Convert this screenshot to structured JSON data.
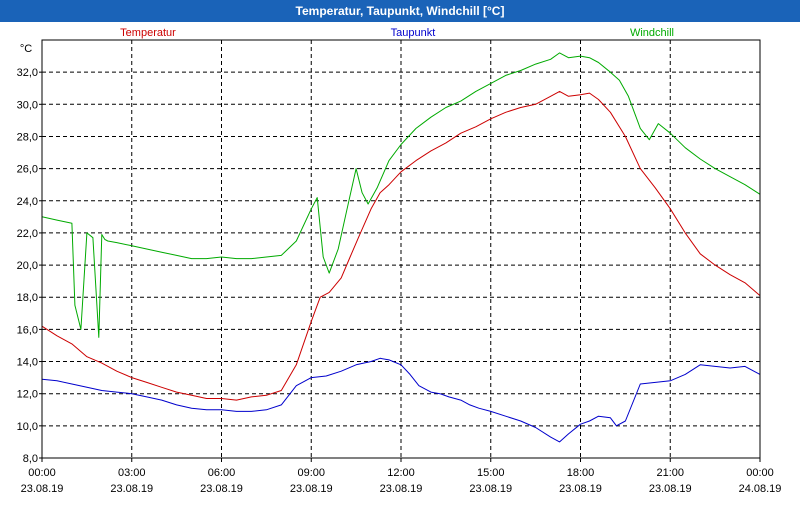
{
  "chart_data": {
    "type": "line",
    "title": "Temperatur, Taupunkt, Windchill [°C]",
    "ylabel": "°C",
    "ylim": [
      8,
      34
    ],
    "yticks": [
      8,
      10,
      12,
      14,
      16,
      18,
      20,
      22,
      24,
      26,
      28,
      30,
      32
    ],
    "ytick_labels": [
      "8,0",
      "10,0",
      "12,0",
      "14,0",
      "16,0",
      "18,0",
      "20,0",
      "22,0",
      "24,0",
      "26,0",
      "28,0",
      "30,0",
      "32,0"
    ],
    "xlim": [
      0,
      24
    ],
    "xticks": [
      {
        "h": 0,
        "time": "00:00",
        "date": "23.08.19"
      },
      {
        "h": 3,
        "time": "03:00",
        "date": "23.08.19"
      },
      {
        "h": 6,
        "time": "06:00",
        "date": "23.08.19"
      },
      {
        "h": 9,
        "time": "09:00",
        "date": "23.08.19"
      },
      {
        "h": 12,
        "time": "12:00",
        "date": "23.08.19"
      },
      {
        "h": 15,
        "time": "15:00",
        "date": "23.08.19"
      },
      {
        "h": 18,
        "time": "18:00",
        "date": "23.08.19"
      },
      {
        "h": 21,
        "time": "21:00",
        "date": "23.08.19"
      },
      {
        "h": 24,
        "time": "00:00",
        "date": "24.08.19"
      }
    ],
    "grid": true,
    "series": [
      {
        "name": "Temperatur",
        "color": "#cc0000",
        "x": [
          0,
          0.5,
          1,
          1.5,
          2,
          2.5,
          3,
          3.5,
          4,
          4.5,
          5,
          5.5,
          6,
          6.5,
          7,
          7.5,
          8,
          8.5,
          9,
          9.3,
          9.6,
          10,
          10.3,
          10.6,
          11,
          11.3,
          11.6,
          12,
          12.5,
          13,
          13.5,
          14,
          14.5,
          15,
          15.5,
          16,
          16.5,
          17,
          17.3,
          17.6,
          18,
          18.3,
          18.6,
          19,
          19.5,
          20,
          20.5,
          21,
          21.5,
          22,
          22.5,
          23,
          23.5,
          24
        ],
        "values": [
          16.2,
          15.6,
          15.1,
          14.3,
          13.9,
          13.4,
          13.0,
          12.7,
          12.4,
          12.1,
          11.9,
          11.7,
          11.7,
          11.6,
          11.8,
          11.9,
          12.2,
          13.8,
          16.5,
          18.0,
          18.3,
          19.2,
          20.5,
          21.8,
          23.5,
          24.5,
          25.0,
          25.8,
          26.5,
          27.1,
          27.6,
          28.2,
          28.6,
          29.1,
          29.5,
          29.8,
          30.0,
          30.5,
          30.8,
          30.5,
          30.6,
          30.7,
          30.3,
          29.5,
          28.0,
          26.0,
          24.8,
          23.5,
          22.0,
          20.7,
          20.0,
          19.4,
          18.9,
          18.1
        ]
      },
      {
        "name": "Taupunkt",
        "color": "#0000cc",
        "x": [
          0,
          0.5,
          1,
          1.5,
          2,
          2.5,
          3,
          3.5,
          4,
          4.5,
          5,
          5.5,
          6,
          6.5,
          7,
          7.5,
          8,
          8.5,
          9,
          9.5,
          10,
          10.5,
          11,
          11.3,
          11.6,
          12,
          12.3,
          12.6,
          13,
          13.3,
          13.6,
          14,
          14.3,
          14.6,
          15,
          15.5,
          16,
          16.5,
          17,
          17.3,
          17.6,
          18,
          18.3,
          18.6,
          19,
          19.2,
          19.5,
          20,
          20.5,
          21,
          21.5,
          22,
          22.5,
          23,
          23.5,
          24
        ],
        "values": [
          12.9,
          12.8,
          12.6,
          12.4,
          12.2,
          12.1,
          12.0,
          11.8,
          11.6,
          11.3,
          11.1,
          11.0,
          11.0,
          10.9,
          10.9,
          11.0,
          11.3,
          12.5,
          13.0,
          13.1,
          13.4,
          13.8,
          14.0,
          14.2,
          14.1,
          13.8,
          13.2,
          12.5,
          12.1,
          12.0,
          11.8,
          11.6,
          11.3,
          11.1,
          10.9,
          10.6,
          10.3,
          9.9,
          9.3,
          9.0,
          9.5,
          10.1,
          10.3,
          10.6,
          10.5,
          10.0,
          10.3,
          12.6,
          12.7,
          12.8,
          13.2,
          13.8,
          13.7,
          13.6,
          13.7,
          13.2
        ]
      },
      {
        "name": "Windchill",
        "color": "#00aa00",
        "x": [
          0,
          0.5,
          1,
          1.1,
          1.3,
          1.5,
          1.7,
          1.9,
          2.0,
          2.1,
          2.2,
          2.5,
          3,
          3.5,
          4,
          4.5,
          5,
          5.5,
          6,
          6.5,
          7,
          7.5,
          8,
          8.5,
          9,
          9.2,
          9.4,
          9.6,
          9.9,
          10.2,
          10.5,
          10.7,
          10.9,
          11.2,
          11.6,
          12,
          12.5,
          13,
          13.5,
          14,
          14.5,
          15,
          15.5,
          16,
          16.5,
          17,
          17.3,
          17.6,
          18,
          18.3,
          18.6,
          19,
          19.3,
          19.6,
          20,
          20.3,
          20.6,
          21,
          21.5,
          22,
          22.5,
          23,
          23.5,
          24
        ],
        "values": [
          23.0,
          22.8,
          22.6,
          17.5,
          16.0,
          22.0,
          21.7,
          15.5,
          21.9,
          21.6,
          21.5,
          21.4,
          21.2,
          21.0,
          20.8,
          20.6,
          20.4,
          20.4,
          20.5,
          20.4,
          20.4,
          20.5,
          20.6,
          21.5,
          23.5,
          24.2,
          20.5,
          19.5,
          21.0,
          23.5,
          26.0,
          24.5,
          23.8,
          24.8,
          26.5,
          27.5,
          28.5,
          29.2,
          29.8,
          30.2,
          30.8,
          31.3,
          31.8,
          32.1,
          32.5,
          32.8,
          33.2,
          32.9,
          33.0,
          32.9,
          32.6,
          32.0,
          31.5,
          30.5,
          28.5,
          27.8,
          28.8,
          28.2,
          27.3,
          26.6,
          26.0,
          25.5,
          25.0,
          24.4
        ]
      }
    ]
  }
}
